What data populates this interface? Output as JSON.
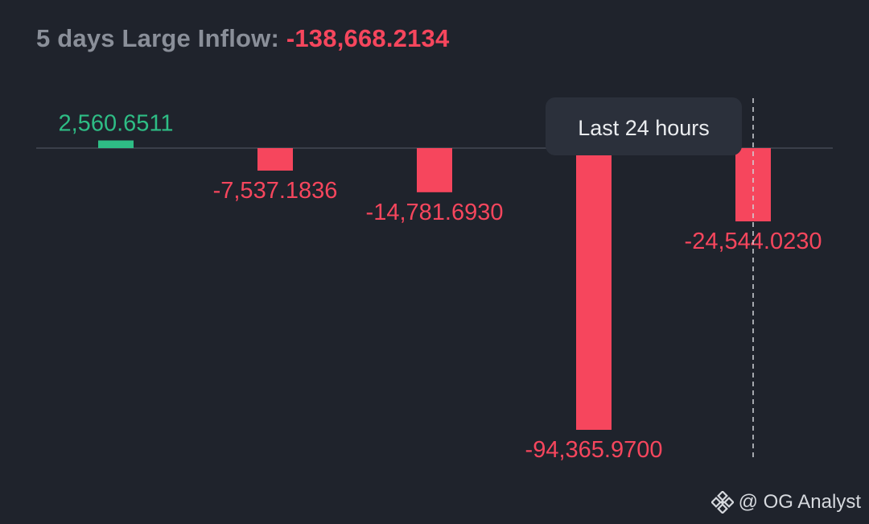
{
  "header": {
    "label": "5 days Large Inflow:",
    "value": "-138,668.2134"
  },
  "chart_data": {
    "type": "bar",
    "categories": [
      "",
      "",
      "",
      "",
      ""
    ],
    "values": [
      2560.6511,
      -7537.1836,
      -14781.693,
      -94365.97,
      -24544.023
    ],
    "value_labels": [
      "2,560.6511",
      "-7,537.1836",
      "-14,781.6930",
      "-94,365.9700",
      "-24,544.0230"
    ],
    "positive_color": "#2ebd85",
    "negative_color": "#f6465d",
    "tooltip": "Last 24 hours",
    "highlighted_index": 4,
    "grid": false,
    "legend": "none"
  },
  "watermark": {
    "text": "@ OG Analyst",
    "icon": "binance-logo-icon"
  }
}
